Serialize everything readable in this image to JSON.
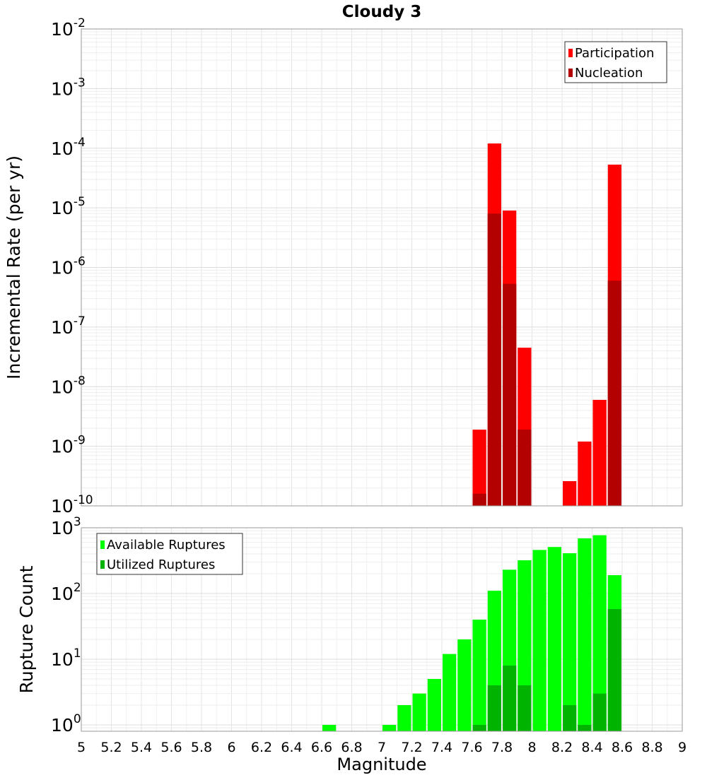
{
  "chart_data": [
    {
      "type": "bar",
      "title": "Cloudy 3",
      "xlabel": "",
      "ylabel": "Incremental Rate (per yr)",
      "yscale": "log",
      "ylim": [
        1e-10,
        0.01
      ],
      "xlim": [
        5,
        9
      ],
      "bin_width": 0.1,
      "grid": true,
      "legend_position": "top-right",
      "overlay": true,
      "y_tick_labels": [
        {
          "base": "10",
          "exp": "-2"
        },
        {
          "base": "10",
          "exp": "-3"
        },
        {
          "base": "10",
          "exp": "-4"
        },
        {
          "base": "10",
          "exp": "-5"
        },
        {
          "base": "10",
          "exp": "-6"
        },
        {
          "base": "10",
          "exp": "-7"
        },
        {
          "base": "10",
          "exp": "-8"
        },
        {
          "base": "10",
          "exp": "-9"
        },
        {
          "base": "10",
          "exp": "-10"
        }
      ],
      "series": [
        {
          "name": "Participation",
          "color": "#ff0000",
          "points": [
            {
              "x": 7.65,
              "y": 1.9e-09
            },
            {
              "x": 7.75,
              "y": 0.00012
            },
            {
              "x": 7.85,
              "y": 9e-06
            },
            {
              "x": 7.95,
              "y": 4.5e-08
            },
            {
              "x": 8.25,
              "y": 2.6e-10
            },
            {
              "x": 8.35,
              "y": 1.2e-09
            },
            {
              "x": 8.45,
              "y": 6e-09
            },
            {
              "x": 8.55,
              "y": 5.3e-05
            }
          ]
        },
        {
          "name": "Nucleation",
          "color": "#b30000",
          "points": [
            {
              "x": 7.65,
              "y": 1.6e-10
            },
            {
              "x": 7.75,
              "y": 8e-06
            },
            {
              "x": 7.85,
              "y": 5.3e-07
            },
            {
              "x": 7.95,
              "y": 1.9e-09
            },
            {
              "x": 8.55,
              "y": 6e-07
            }
          ]
        }
      ]
    },
    {
      "type": "bar",
      "title": "",
      "xlabel": "Magnitude",
      "ylabel": "Rupture Count",
      "yscale": "log",
      "ylim": [
        0.8,
        1000
      ],
      "xlim": [
        5,
        9
      ],
      "bin_width": 0.1,
      "grid": true,
      "legend_position": "top-left",
      "overlay": true,
      "x_tick_labels": [
        "5",
        "5.2",
        "5.4",
        "5.6",
        "5.8",
        "6",
        "6.2",
        "6.4",
        "6.6",
        "6.8",
        "7",
        "7.2",
        "7.4",
        "7.6",
        "7.8",
        "8",
        "8.2",
        "8.4",
        "8.6",
        "8.8",
        "9"
      ],
      "y_tick_labels": [
        {
          "base": "10",
          "exp": "3"
        },
        {
          "base": "10",
          "exp": "2"
        },
        {
          "base": "10",
          "exp": "1"
        },
        {
          "base": "10",
          "exp": "0"
        }
      ],
      "series": [
        {
          "name": "Available Ruptures",
          "color": "#00ff00",
          "points": [
            {
              "x": 6.65,
              "y": 1
            },
            {
              "x": 7.05,
              "y": 1
            },
            {
              "x": 7.15,
              "y": 2
            },
            {
              "x": 7.25,
              "y": 3
            },
            {
              "x": 7.35,
              "y": 5
            },
            {
              "x": 7.45,
              "y": 12
            },
            {
              "x": 7.55,
              "y": 20
            },
            {
              "x": 7.65,
              "y": 40
            },
            {
              "x": 7.75,
              "y": 110
            },
            {
              "x": 7.85,
              "y": 230
            },
            {
              "x": 7.95,
              "y": 320
            },
            {
              "x": 8.05,
              "y": 460
            },
            {
              "x": 8.15,
              "y": 510
            },
            {
              "x": 8.25,
              "y": 410
            },
            {
              "x": 8.35,
              "y": 690
            },
            {
              "x": 8.45,
              "y": 770
            },
            {
              "x": 8.55,
              "y": 190
            }
          ]
        },
        {
          "name": "Utilized Ruptures",
          "color": "#00b300",
          "points": [
            {
              "x": 7.65,
              "y": 1
            },
            {
              "x": 7.75,
              "y": 4
            },
            {
              "x": 7.85,
              "y": 8
            },
            {
              "x": 7.95,
              "y": 4
            },
            {
              "x": 8.25,
              "y": 2
            },
            {
              "x": 8.35,
              "y": 1
            },
            {
              "x": 8.45,
              "y": 3
            },
            {
              "x": 8.55,
              "y": 58
            }
          ]
        }
      ]
    }
  ]
}
